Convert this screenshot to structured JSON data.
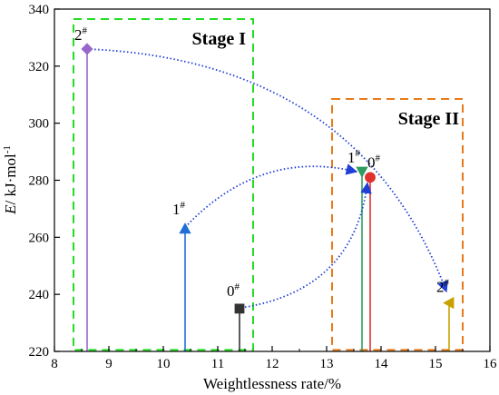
{
  "chart_data": {
    "type": "scatter",
    "title": "",
    "xlabel": "Weightlessness rate/%",
    "ylabel_prefix": "E",
    "ylabel_rest": "/ kJ·mol",
    "ylabel_sup": "-1",
    "xlim": [
      8,
      16
    ],
    "ylim": [
      220,
      340
    ],
    "xticks": [
      8,
      9,
      10,
      11,
      12,
      13,
      14,
      15,
      16
    ],
    "yticks": [
      220,
      240,
      260,
      280,
      300,
      320,
      340
    ],
    "grid": false,
    "stages": [
      {
        "name": "stage-1",
        "label": "Stage I",
        "color": "#22dd22",
        "x_range": [
          8.35,
          11.65
        ],
        "y_range": [
          220.5,
          336.5
        ]
      },
      {
        "name": "stage-2",
        "label": "Stage II",
        "color": "#e87a1a",
        "x_range": [
          13.1,
          15.5
        ],
        "y_range": [
          220.5,
          308.5
        ]
      }
    ],
    "points": [
      {
        "name": "stage1-2",
        "label": "2",
        "sup": "#",
        "x": 8.6,
        "y": 326,
        "marker": "diamond",
        "color": "#9966cc"
      },
      {
        "name": "stage1-1",
        "label": "1",
        "sup": "#",
        "x": 10.4,
        "y": 263,
        "marker": "triangle-up",
        "color": "#1f6fd6"
      },
      {
        "name": "stage1-0",
        "label": "0",
        "sup": "#",
        "x": 11.4,
        "y": 235,
        "marker": "square",
        "color": "#333333"
      },
      {
        "name": "stage2-1",
        "label": "1",
        "sup": "#",
        "x": 13.65,
        "y": 283,
        "marker": "triangle-down",
        "color": "#2e9e5e"
      },
      {
        "name": "stage2-0",
        "label": "0",
        "sup": "#",
        "x": 13.8,
        "y": 281,
        "marker": "circle",
        "color": "#e03030"
      },
      {
        "name": "stage2-2",
        "label": "2",
        "sup": "#",
        "x": 15.25,
        "y": 237,
        "marker": "triangle-left",
        "color": "#c8a000"
      }
    ],
    "arrows": [
      {
        "name": "arrow-2",
        "from": [
          8.6,
          326
        ],
        "to": [
          15.2,
          241
        ],
        "ctrl": [
          13.6,
          322
        ]
      },
      {
        "name": "arrow-1",
        "from": [
          10.45,
          264.5
        ],
        "to": [
          13.55,
          283
        ],
        "ctrl": [
          11.8,
          291
        ]
      },
      {
        "name": "arrow-0",
        "from": [
          11.5,
          235.5
        ],
        "to": [
          13.75,
          279
        ],
        "ctrl": [
          13.5,
          242
        ]
      }
    ],
    "arrow_color": "#1f3fd6"
  }
}
